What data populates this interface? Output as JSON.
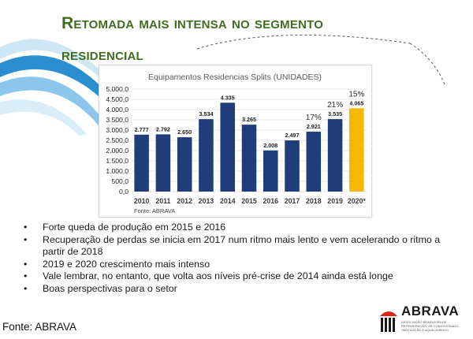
{
  "slide": {
    "title_line1": "Retomada mais intensa no segmento",
    "title_line2": "residencial"
  },
  "colors": {
    "title": "#3f6e1f",
    "bar": "#1f3d7a",
    "highlight_bar": "#f5b800",
    "swoosh": "#2a8fd0"
  },
  "chart_data": {
    "type": "bar",
    "title": "Equipamentos Residencias Splits (UNIDADES)",
    "source_note": "Fonte: ABRAVA",
    "categories": [
      "2010",
      "2011",
      "2012",
      "2013",
      "2014",
      "2015",
      "2016",
      "2017",
      "2018",
      "2019",
      "2020*"
    ],
    "values": [
      2777,
      2792,
      2650,
      3534,
      4335,
      3265,
      2008,
      2497,
      2921,
      3535,
      4065
    ],
    "value_labels": [
      "2.777",
      "2.792",
      "2.650",
      "3.534",
      "4.335",
      "3.265",
      "2.008",
      "2.497",
      "2.921",
      "3.535",
      "4.065"
    ],
    "highlight_index": 10,
    "ylim": [
      0,
      5000
    ],
    "yticks": [
      0,
      500,
      1000,
      1500,
      2000,
      2500,
      3000,
      3500,
      4000,
      4500,
      5000
    ],
    "ytick_labels": [
      "0,0",
      "500,0",
      "1.000,0",
      "1.500,0",
      "2.000,0",
      "2.500,0",
      "3.000,0",
      "3.500,0",
      "4.000,0",
      "4.500,0",
      "5.000,0"
    ],
    "annotations": [
      {
        "category": "2018",
        "text": "17%"
      },
      {
        "category": "2019",
        "text": "21%"
      },
      {
        "category": "2020*",
        "text": "15%"
      }
    ],
    "grid": true,
    "xlabel": "",
    "ylabel": ""
  },
  "bullets": [
    "Forte queda de produção em 2015 e 2016",
    "Recuperação de perdas se inicia em 2017 num ritmo mais lento e vem acelerando o ritmo a partir de 2018",
    "2019 e 2020  crescimento mais intenso",
    "Vale lembrar, no entanto, que volta aos níveis pré-crise de 2014 ainda está longe",
    "Boas perspectivas para o setor"
  ],
  "footer": {
    "source": "Fonte: ABRAVA"
  },
  "logo": {
    "name": "ABRAVA",
    "subtitle": "ASSOCIAÇÃO BRASILEIRA DE REFRIGERAÇÃO, AR CONDICIONADO, VENTILAÇÃO E AQUECIMENTO"
  }
}
